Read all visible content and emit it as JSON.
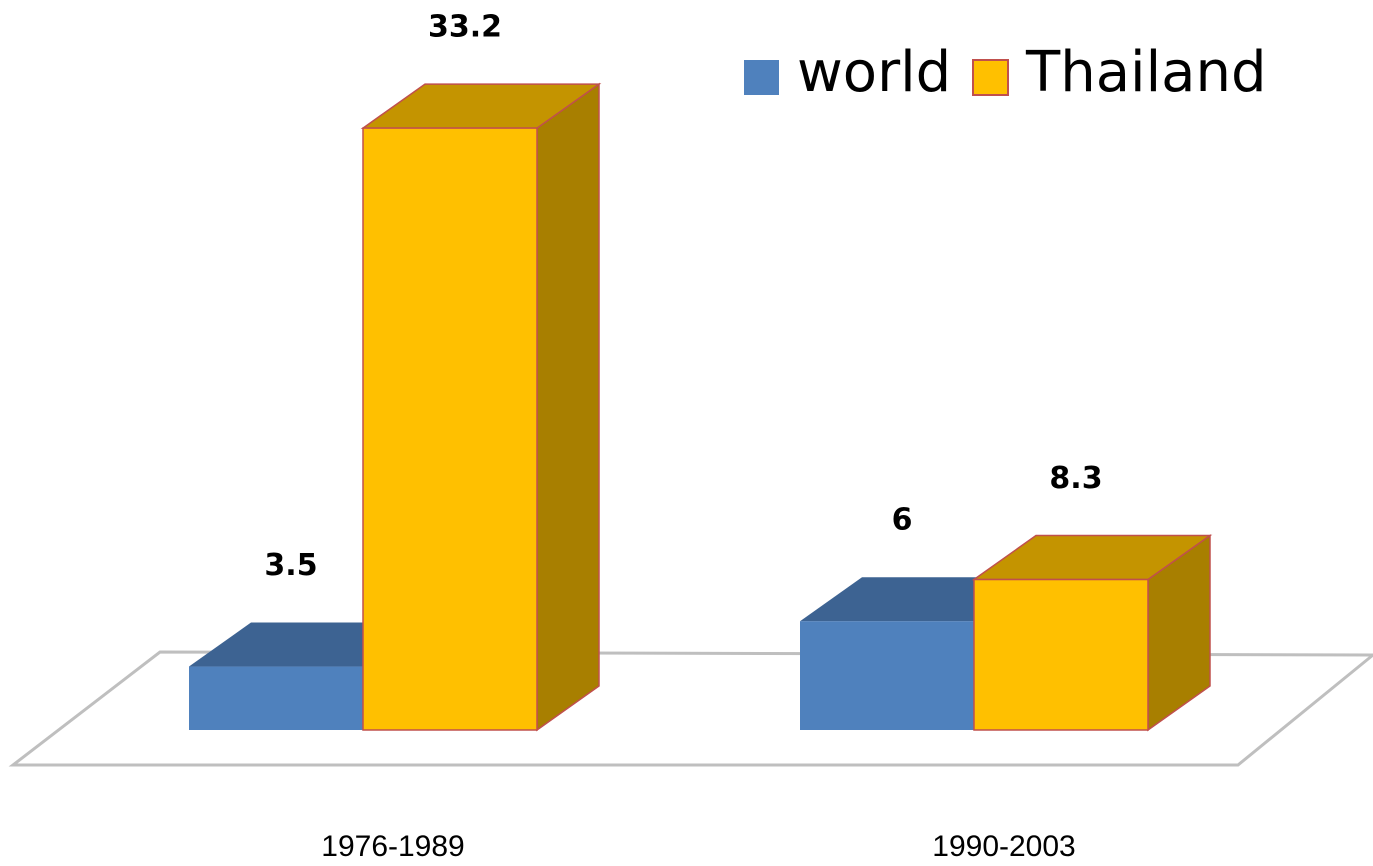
{
  "chart_data": {
    "type": "bar",
    "categories": [
      "1976-1989",
      "1990-2003"
    ],
    "series": [
      {
        "name": "world",
        "color": "#4f81bd",
        "values": [
          3.5,
          6
        ]
      },
      {
        "name": "Thailand",
        "color": "#ffc000",
        "values": [
          33.2,
          8.3
        ]
      }
    ]
  }
}
